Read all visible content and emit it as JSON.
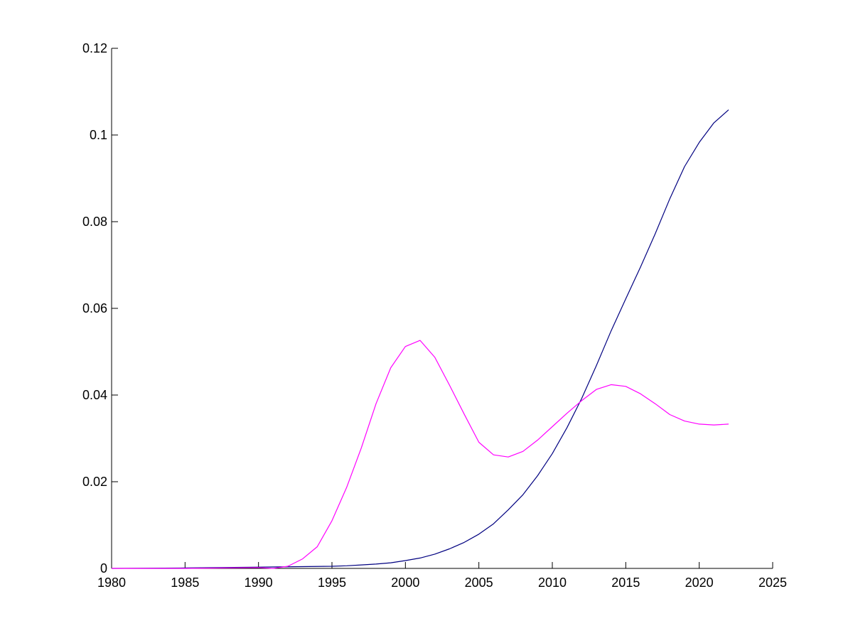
{
  "chart_data": {
    "type": "line",
    "title": "",
    "xlabel": "",
    "ylabel": "",
    "xlim": [
      1980,
      2025
    ],
    "ylim": [
      0,
      0.12
    ],
    "grid": false,
    "x_ticks": [
      1980,
      1985,
      1990,
      1995,
      2000,
      2005,
      2010,
      2015,
      2020,
      2025
    ],
    "x_tick_labels": [
      "1980",
      "1985",
      "1990",
      "1995",
      "2000",
      "2005",
      "2010",
      "2015",
      "2020",
      "2025"
    ],
    "y_ticks": [
      0,
      0.02,
      0.04,
      0.06,
      0.08,
      0.1,
      0.12
    ],
    "y_tick_labels": [
      "0",
      "0.02",
      "0.04",
      "0.06",
      "0.08",
      "0.1",
      "0.12"
    ],
    "series": [
      {
        "color": "#000080",
        "x": [
          1980,
          1985,
          1990,
          1995,
          1996,
          1997,
          1998,
          1999,
          2000,
          2001,
          2002,
          2003,
          2004,
          2005,
          2006,
          2007,
          2008,
          2009,
          2010,
          2011,
          2012,
          2013,
          2014,
          2015,
          2016,
          2017,
          2018,
          2019,
          2020,
          2021,
          2022
        ],
        "y": [
          0,
          0.0001,
          0.0003,
          0.0005,
          0.0006,
          0.0008,
          0.001,
          0.0013,
          0.0018,
          0.0024,
          0.0033,
          0.0045,
          0.006,
          0.0079,
          0.0103,
          0.0135,
          0.017,
          0.0214,
          0.0265,
          0.0325,
          0.0392,
          0.0468,
          0.0548,
          0.0622,
          0.0695,
          0.0772,
          0.0853,
          0.0927,
          0.0983,
          0.1028,
          0.1058
        ]
      },
      {
        "color": "#ff00ff",
        "x": [
          1980,
          1985,
          1990,
          1991,
          1992,
          1993,
          1994,
          1995,
          1996,
          1997,
          1998,
          1999,
          2000,
          2001,
          2002,
          2003,
          2004,
          2005,
          2006,
          2007,
          2008,
          2009,
          2010,
          2011,
          2012,
          2013,
          2014,
          2015,
          2016,
          2017,
          2018,
          2019,
          2020,
          2021,
          2022
        ],
        "y": [
          0,
          0,
          0.0002,
          0,
          0.0005,
          0.0022,
          0.005,
          0.011,
          0.0187,
          0.0278,
          0.038,
          0.0463,
          0.0512,
          0.0526,
          0.0487,
          0.0423,
          0.0356,
          0.0291,
          0.0262,
          0.0257,
          0.027,
          0.0296,
          0.0327,
          0.0358,
          0.0387,
          0.0413,
          0.0424,
          0.042,
          0.0403,
          0.038,
          0.0355,
          0.034,
          0.0333,
          0.0331,
          0.0333
        ]
      }
    ]
  }
}
